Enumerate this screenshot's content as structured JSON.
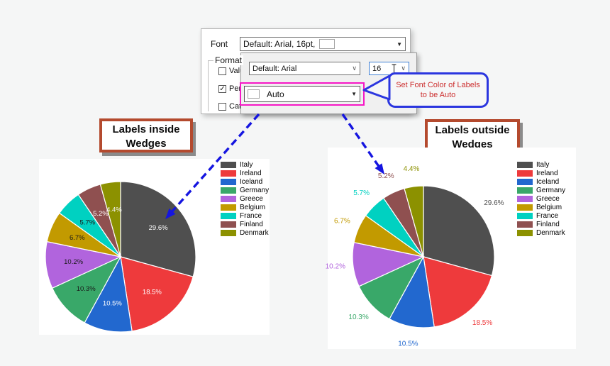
{
  "page": {
    "background": "#f5f6f6"
  },
  "dialog": {
    "font_label": "Font",
    "font_dropdown_value": "Default: Arial, 16pt,",
    "format_label": "Format",
    "checkboxes": [
      {
        "label": "Valu",
        "checked": false
      },
      {
        "label": "Per",
        "checked": true
      },
      {
        "label": "Cat",
        "checked": false
      }
    ],
    "popup": {
      "font_name_value": "Default: Arial",
      "font_size_value": "16",
      "color_value": "Auto",
      "highlight_color": "#f617c6"
    }
  },
  "callout": {
    "line1": "Set Font Color of Labels",
    "line2": "to be Auto",
    "text_color": "#cc2e2e",
    "border_color": "#2b36df"
  },
  "titles": {
    "left": {
      "line1": "Labels inside",
      "line2": "Wedges"
    },
    "right": {
      "line1": "Labels outside",
      "line2": "Wedges"
    },
    "border_color": "#b44a2e"
  },
  "arrow_color": "#1515e0",
  "chart_data": [
    {
      "id": "pie-inside",
      "type": "pie",
      "title": "Labels inside Wedges",
      "label_position": "inside",
      "label_color_mode": "auto",
      "start_angle": "top",
      "direction": "clockwise",
      "legend_position": "right",
      "categories": [
        "Italy",
        "Ireland",
        "Iceland",
        "Germany",
        "Greece",
        "Belgium",
        "France",
        "Finland",
        "Denmark"
      ],
      "values": [
        29.6,
        18.5,
        10.5,
        10.3,
        10.2,
        6.7,
        5.7,
        5.2,
        4.4
      ],
      "labels": [
        "29.6%",
        "18.5%",
        "10.5%",
        "10.3%",
        "10.2%",
        "6.7%",
        "5.7%",
        "5.2%",
        "4.4%"
      ],
      "colors": [
        "#4f4f4f",
        "#ee3a3c",
        "#2268cf",
        "#39a869",
        "#b164dd",
        "#c29a00",
        "#00d1c1",
        "#8f5050",
        "#8c9100"
      ],
      "label_colors": [
        "#ffffff",
        "#ffffff",
        "#ffffff",
        "#1a1a1a",
        "#1a1a1a",
        "#1a1a1a",
        "#1a1a1a",
        "#ffffff",
        "#f2f2f2"
      ]
    },
    {
      "id": "pie-outside",
      "type": "pie",
      "title": "Labels outside Wedges",
      "label_position": "outside",
      "label_color_mode": "wedge",
      "start_angle": "top",
      "direction": "clockwise",
      "legend_position": "right",
      "categories": [
        "Italy",
        "Ireland",
        "Iceland",
        "Germany",
        "Greece",
        "Belgium",
        "France",
        "Finland",
        "Denmark"
      ],
      "values": [
        29.6,
        18.5,
        10.5,
        10.3,
        10.2,
        6.7,
        5.7,
        5.2,
        4.4
      ],
      "labels": [
        "29.6%",
        "18.5%",
        "10.5%",
        "10.3%",
        "10.2%",
        "6.7%",
        "5.7%",
        "5.2%",
        "4.4%"
      ],
      "colors": [
        "#4f4f4f",
        "#ee3a3c",
        "#2268cf",
        "#39a869",
        "#b164dd",
        "#c29a00",
        "#00d1c1",
        "#8f5050",
        "#8c9100"
      ],
      "label_colors": [
        "#4f4f4f",
        "#ee3a3c",
        "#2268cf",
        "#39a869",
        "#b164dd",
        "#c29a00",
        "#00d1c1",
        "#8f5050",
        "#8c9100"
      ]
    }
  ]
}
